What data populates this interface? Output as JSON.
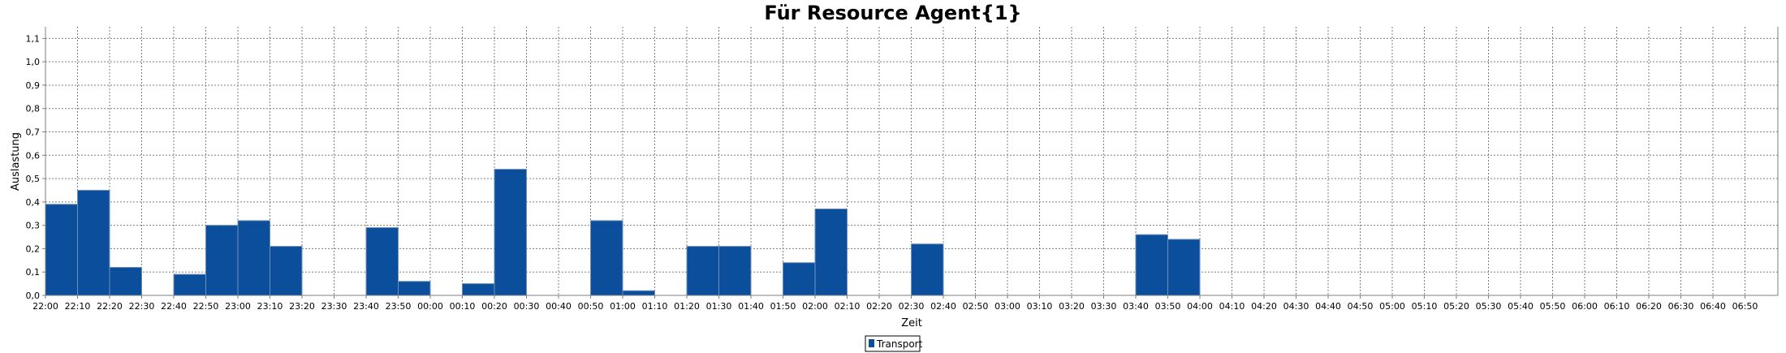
{
  "chart_data": {
    "type": "bar",
    "title": "Für Resource Agent{1}",
    "xlabel": "Zeit",
    "ylabel": "Auslastung",
    "ylim": [
      0,
      1.15
    ],
    "yticks": [
      "0,0",
      "0,1",
      "0,2",
      "0,3",
      "0,4",
      "0,5",
      "0,6",
      "0,7",
      "0,8",
      "0,9",
      "1,0",
      "1,1"
    ],
    "categories": [
      "22:00",
      "22:10",
      "22:20",
      "22:30",
      "22:40",
      "22:50",
      "23:00",
      "23:10",
      "23:20",
      "23:30",
      "23:40",
      "23:50",
      "00:00",
      "00:10",
      "00:20",
      "00:30",
      "00:40",
      "00:50",
      "01:00",
      "01:10",
      "01:20",
      "01:30",
      "01:40",
      "01:50",
      "02:00",
      "02:10",
      "02:20",
      "02:30",
      "02:40",
      "02:50",
      "03:00",
      "03:10",
      "03:20",
      "03:30",
      "03:40",
      "03:50",
      "04:00",
      "04:10",
      "04:20",
      "04:30",
      "04:40",
      "04:50",
      "05:00",
      "05:10",
      "05:20",
      "05:30",
      "05:40",
      "05:50",
      "06:00",
      "06:10",
      "06:20",
      "06:30",
      "06:40",
      "06:50"
    ],
    "series": [
      {
        "name": "Transport",
        "color": "#0b4f9c",
        "values": [
          0.39,
          0.45,
          0.12,
          0,
          0.09,
          0.3,
          0.32,
          0.21,
          0,
          0,
          0.29,
          0.06,
          0,
          0.05,
          0.54,
          0,
          0,
          0.32,
          0.02,
          0,
          0.21,
          0.21,
          0,
          0.14,
          0.37,
          0,
          0,
          0.22,
          0,
          0,
          0,
          0,
          0,
          0,
          0.26,
          0.24,
          0,
          0,
          0,
          0,
          0,
          0,
          0,
          0,
          0,
          0,
          0,
          0,
          0,
          0,
          0,
          0,
          0,
          0
        ]
      }
    ],
    "grid": true,
    "legend_position": "bottom-center"
  }
}
